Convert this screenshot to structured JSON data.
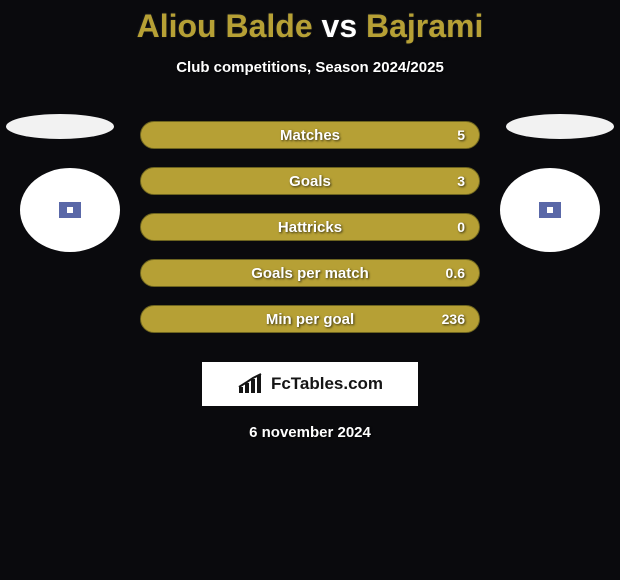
{
  "header": {
    "player1": "Aliou Balde",
    "vs": "vs",
    "player2": "Bajrami",
    "subtitle": "Club competitions, Season 2024/2025",
    "title_color_p1": "#b6a035",
    "title_color_vs": "#ffffff",
    "title_color_p2": "#b6a035"
  },
  "profiles": {
    "ellipse_bg": "#f2f2f2",
    "club_bg": "#ffffff",
    "club_icon_color": "#5a68a8"
  },
  "stats": {
    "bar_color": "#b6a035",
    "bar_border": "#6d641f",
    "rows": [
      {
        "label": "Matches",
        "value_right": "5"
      },
      {
        "label": "Goals",
        "value_right": "3"
      },
      {
        "label": "Hattricks",
        "value_right": "0"
      },
      {
        "label": "Goals per match",
        "value_right": "0.6"
      },
      {
        "label": "Min per goal",
        "value_right": "236"
      }
    ]
  },
  "branding": {
    "bg": "#ffffff",
    "text": "FcTables.com",
    "text_color": "#151515",
    "icon_color": "#151515"
  },
  "footer": {
    "date": "6 november 2024"
  },
  "page": {
    "background": "#0a0a0d"
  }
}
